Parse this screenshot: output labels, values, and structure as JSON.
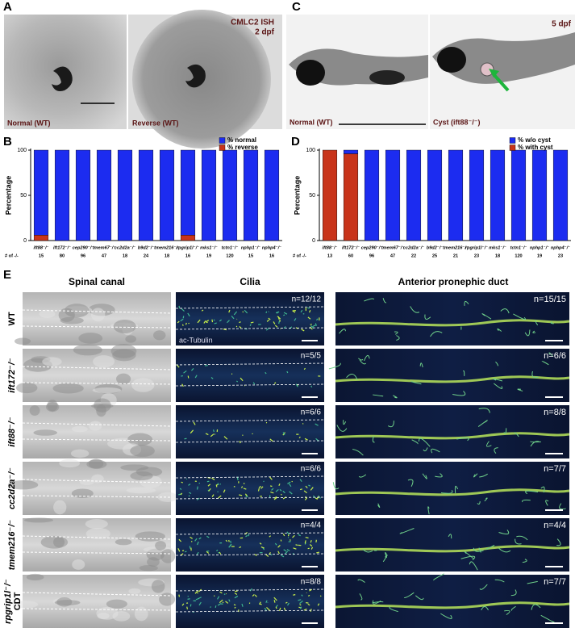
{
  "panels": {
    "a": {
      "letter": "A",
      "stain": "CMLC2 ISH",
      "stage": "2 dpf",
      "left": "Normal (WT)",
      "right": "Reverse (WT)"
    },
    "c": {
      "letter": "C",
      "stage": "5 dpf",
      "left": "Normal (WT)",
      "right": "Cyst (ift88⁻/⁻)"
    },
    "e": {
      "letter": "E",
      "columns": [
        "Spinal canal",
        "Cilia",
        "Anterior pronephic duct"
      ],
      "stain": "ac-Tubulin",
      "rows": [
        {
          "label": "WT",
          "cilia_n": "n=12/12",
          "duct_n": "n=15/15"
        },
        {
          "label": "ift172⁻/⁻",
          "cilia_n": "n=5/5",
          "duct_n": "n=6/6"
        },
        {
          "label": "ift88⁻/⁻",
          "cilia_n": "n=6/6",
          "duct_n": "n=8/8"
        },
        {
          "label": "cc2d2a⁻/⁻",
          "cilia_n": "n=6/6",
          "duct_n": "n=7/7"
        },
        {
          "label": "tmem216⁻/⁻",
          "cilia_n": "n=4/4",
          "duct_n": "n=4/4"
        },
        {
          "label": "rpgrip1l⁻/⁻",
          "sublabel": "CDT",
          "cilia_n": "n=8/8",
          "duct_n": "n=7/7"
        }
      ]
    }
  },
  "chart_data": [
    {
      "type": "bar",
      "panel": "B",
      "stacked": true,
      "ylabel": "Percentage",
      "categories": [
        "ift88⁻/⁻",
        "ift172⁻/⁻",
        "cep290⁻/⁻",
        "tmem67⁻/⁻",
        "cc2d2a⁻/⁻",
        "b9d2⁻/⁻",
        "tmem216⁻/⁻",
        "rpgrip1l⁻/⁻",
        "mks1⁻/⁻",
        "tctn1⁻/⁻",
        "nphp1⁻/⁻",
        "nphp4⁻/⁻"
      ],
      "series": [
        {
          "name": "% normal",
          "color": "#1c2cf0",
          "values": [
            94,
            100,
            100,
            100,
            100,
            100,
            100,
            94,
            100,
            100,
            100,
            100
          ]
        },
        {
          "name": "% reverse",
          "color": "#c8341a",
          "values": [
            6,
            0,
            0,
            0,
            0,
            0,
            0,
            6,
            0,
            0,
            0,
            0
          ]
        }
      ],
      "counts_label": "# of -/-",
      "counts": [
        "15",
        "80",
        "96",
        "47",
        "18",
        "24",
        "18",
        "16",
        "19",
        "120",
        "15",
        "16"
      ],
      "ylim": [
        0,
        100
      ],
      "yticks": [
        0,
        50,
        100
      ]
    },
    {
      "type": "bar",
      "panel": "D",
      "stacked": true,
      "ylabel": "Percentage",
      "categories": [
        "ift88⁻/⁻",
        "ift172⁻/⁻",
        "cep290⁻/⁻",
        "tmem67⁻/⁻",
        "cc2d2a⁻/⁻",
        "b9d2⁻/⁻",
        "tmem216⁻/⁻",
        "rpgrip1l⁻/⁻",
        "mks1⁻/⁻",
        "tctn1⁻/⁻",
        "nphp1⁻/⁻",
        "nphp4⁻/⁻"
      ],
      "series": [
        {
          "name": "% w/o cyst",
          "color": "#1c2cf0",
          "values": [
            0,
            4,
            100,
            100,
            100,
            100,
            100,
            100,
            100,
            100,
            100,
            100
          ]
        },
        {
          "name": "% with cyst",
          "color": "#c8341a",
          "values": [
            100,
            96,
            0,
            0,
            0,
            0,
            0,
            0,
            0,
            0,
            0,
            0
          ]
        }
      ],
      "counts_label": "# of -/-",
      "counts": [
        "13",
        "60",
        "96",
        "47",
        "22",
        "25",
        "21",
        "23",
        "18",
        "120",
        "19",
        "23"
      ],
      "ylim": [
        0,
        100
      ],
      "yticks": [
        0,
        50,
        100
      ]
    }
  ]
}
